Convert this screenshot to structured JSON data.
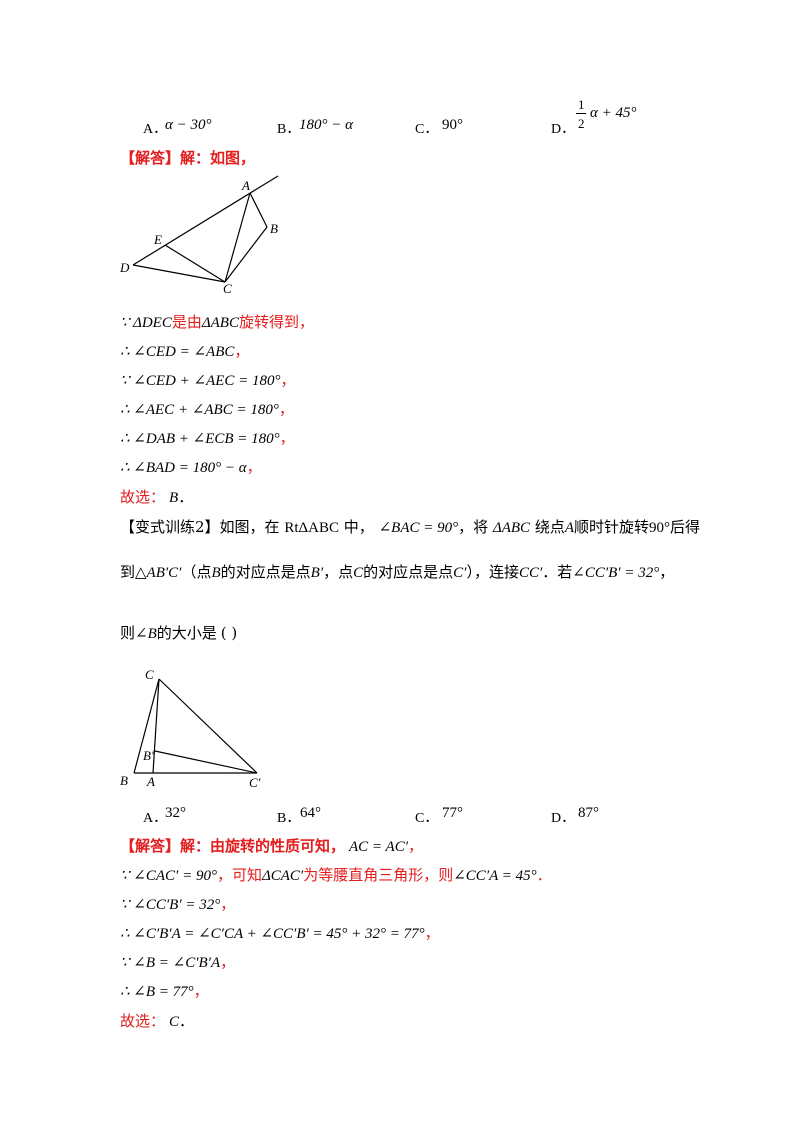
{
  "q1_options": {
    "a_label": "A．",
    "a_value": "α − 30°",
    "b_label": "B．",
    "b_value": "180° − α",
    "c_label": "C．",
    "c_value": "90°",
    "d_label": "D．",
    "d_frac_num": "1",
    "d_frac_den": "2",
    "d_value": "α + 45°"
  },
  "sol1": {
    "header": "【解答】解：如图，",
    "lines": [
      {
        "math": "∵ ΔDEC",
        "text": "是由",
        "math2": "ΔABC",
        "text2": "旋转得到，"
      },
      {
        "math": "∴ ∠CED = ∠ABC",
        "text": "，"
      },
      {
        "math": "∵ ∠CED + ∠AEC = 180°",
        "text": "，"
      },
      {
        "math": "∴ ∠AEC + ∠ABC = 180°",
        "text": "，"
      },
      {
        "math": "∴ ∠DAB + ∠ECB = 180°",
        "text": "，"
      },
      {
        "math": "∴ ∠BAD = 180° − α",
        "text": "，"
      }
    ],
    "answer_text": "故选：",
    "answer_letter": "B",
    "answer_end": "．"
  },
  "fig1_labels": {
    "A": "A",
    "B": "B",
    "C": "C",
    "D": "D",
    "E": "E"
  },
  "q2": {
    "tag": "【变式训练2】",
    "line1": {
      "p1": "如图，在",
      "m1": "RtΔABC",
      "p2": "中，",
      "m2": "∠BAC = 90°",
      "p3": "，将",
      "m3": "ΔABC",
      "p4": "绕点",
      "m4": "A",
      "p5": "顺时针旋转",
      "m5": "90°",
      "p6": "后得"
    },
    "line2": {
      "p1": "到△",
      "m1": "AB′C′",
      "p2": "（点",
      "m2": "B",
      "p3": "的对应点是点",
      "m3": "B′",
      "p4": "，点",
      "m4": "C",
      "p5": "的对应点是点",
      "m5": "C′",
      "p6": "），连接",
      "m6": "CC′",
      "p7": "．若",
      "m7": "∠CC′B′ = 32°",
      "p8": "，"
    },
    "line3": {
      "p1": "则",
      "m1": "∠B",
      "p2": "的大小是",
      "paren": "(        )"
    }
  },
  "fig2_labels": {
    "C": "C",
    "B_prime": "B′",
    "B": "B",
    "A": "A",
    "C_prime": "C′"
  },
  "q2_options": {
    "a_label": "A．",
    "a_value": "32°",
    "b_label": "B．",
    "b_value": "64°",
    "c_label": "C．",
    "c_value": "77°",
    "d_label": "D．",
    "d_value": "87°"
  },
  "sol2": {
    "header": "【解答】解：由旋转的性质可知，",
    "header_math": "AC = AC′",
    "header_end": "，",
    "line2": {
      "m1": "∵ ∠CAC′ = 90°",
      "t1": "，可知",
      "m2": "ΔCAC′",
      "t2": "为等腰直角三角形，则",
      "m3": "∠CC′A = 45°",
      "t3": "．"
    },
    "lines": [
      {
        "math": "∵ ∠CC′B′ = 32°",
        "text": "，"
      },
      {
        "math": "∴ ∠C′B′A = ∠C′CA + ∠CC′B′ = 45° + 32° = 77°",
        "text": "，"
      },
      {
        "math": "∵ ∠B = ∠C′B′A",
        "text": "，"
      },
      {
        "math": "∴ ∠B = 77°",
        "text": "，"
      }
    ],
    "answer_text": "故选：",
    "answer_letter": "C",
    "answer_end": "．"
  }
}
